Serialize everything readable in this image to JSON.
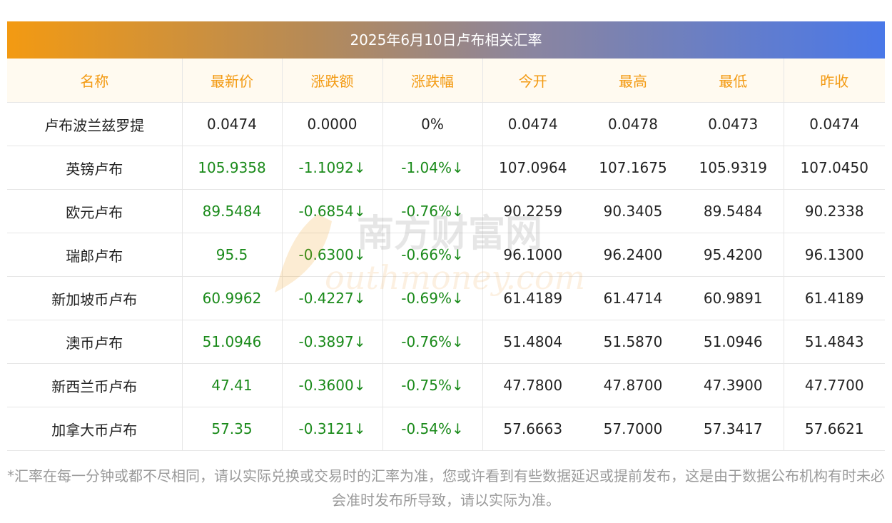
{
  "title": "2025年6月10日卢布相关汇率",
  "headers": [
    "名称",
    "最新价",
    "涨跌额",
    "涨跌幅",
    "今开",
    "最高",
    "最低",
    "昨收"
  ],
  "rows": [
    {
      "name": "卢布波兰兹罗提",
      "latest": "0.0474",
      "change": "0.0000",
      "pct": "0%",
      "open": "0.0474",
      "high": "0.0478",
      "low": "0.0473",
      "prev": "0.0474",
      "trend": "flat"
    },
    {
      "name": "英镑卢布",
      "latest": "105.9358",
      "change": "-1.1092↓",
      "pct": "-1.04%↓",
      "open": "107.0964",
      "high": "107.1675",
      "low": "105.9319",
      "prev": "107.0450",
      "trend": "down"
    },
    {
      "name": "欧元卢布",
      "latest": "89.5484",
      "change": "-0.6854↓",
      "pct": "-0.76%↓",
      "open": "90.2259",
      "high": "90.3405",
      "low": "89.5484",
      "prev": "90.2338",
      "trend": "down"
    },
    {
      "name": "瑞郎卢布",
      "latest": "95.5",
      "change": "-0.6300↓",
      "pct": "-0.66%↓",
      "open": "96.1000",
      "high": "96.2400",
      "low": "95.4200",
      "prev": "96.1300",
      "trend": "down"
    },
    {
      "name": "新加坡币卢布",
      "latest": "60.9962",
      "change": "-0.4227↓",
      "pct": "-0.69%↓",
      "open": "61.4189",
      "high": "61.4714",
      "low": "60.9891",
      "prev": "61.4189",
      "trend": "down"
    },
    {
      "name": "澳币卢布",
      "latest": "51.0946",
      "change": "-0.3897↓",
      "pct": "-0.76%↓",
      "open": "51.4804",
      "high": "51.5870",
      "low": "51.0946",
      "prev": "51.4843",
      "trend": "down"
    },
    {
      "name": "新西兰币卢布",
      "latest": "47.41",
      "change": "-0.3600↓",
      "pct": "-0.75%↓",
      "open": "47.7800",
      "high": "47.8700",
      "low": "47.3900",
      "prev": "47.7700",
      "trend": "down"
    },
    {
      "name": "加拿大币卢布",
      "latest": "57.35",
      "change": "-0.3121↓",
      "pct": "-0.54%↓",
      "open": "57.6663",
      "high": "57.7000",
      "low": "57.3417",
      "prev": "57.6621",
      "trend": "down"
    }
  ],
  "watermark": {
    "cn": "南方财富网",
    "en": "outhmoney.com",
    "logo_letter": "S"
  },
  "footnote": "*汇率在每一分钟或都不尽相同，请以实际兑换或交易时的汇率为准，您或许看到有些数据延迟或提前发布，这是由于数据公布机构有时未必会准时发布所导致，请以实际为准。",
  "colors": {
    "accent": "#f39a12",
    "down": "#1a8a1a",
    "header_bg": "#fffaf0"
  }
}
